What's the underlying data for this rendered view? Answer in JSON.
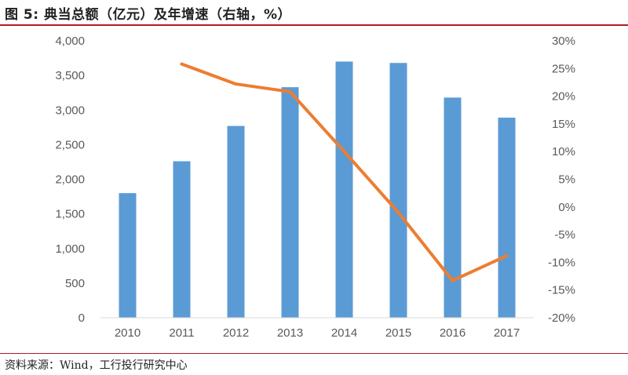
{
  "title": "图 5: 典当总额（亿元）及年增速（右轴，%）",
  "source": "资料来源：Wind，工行投行研究中心",
  "colors": {
    "bar": "#5b9bd5",
    "line": "#ed7d31",
    "axis_text": "#595959",
    "rule": "#b01c24"
  },
  "chart_data": {
    "type": "bar",
    "categories": [
      "2010",
      "2011",
      "2012",
      "2013",
      "2014",
      "2015",
      "2016",
      "2017"
    ],
    "series": [
      {
        "type": "bar",
        "axis": "left",
        "values": [
          1800,
          2260,
          2770,
          3330,
          3700,
          3680,
          3180,
          2890
        ]
      },
      {
        "type": "line",
        "axis": "right",
        "values": [
          null,
          25.8,
          22.2,
          20.8,
          10.0,
          -1.0,
          -13.3,
          -8.8
        ]
      }
    ],
    "y_left": {
      "min": 0,
      "max": 4000,
      "ticks": [
        0,
        500,
        1000,
        1500,
        2000,
        2500,
        3000,
        3500,
        4000
      ],
      "tick_labels": [
        "0",
        "500",
        "1,000",
        "1,500",
        "2,000",
        "2,500",
        "3,000",
        "3,500",
        "4,000"
      ]
    },
    "y_right": {
      "min": -20,
      "max": 30,
      "ticks": [
        -20,
        -15,
        -10,
        -5,
        0,
        5,
        10,
        15,
        20,
        25,
        30
      ],
      "tick_labels": [
        "-20%",
        "-15%",
        "-10%",
        "-5%",
        "0%",
        "5%",
        "10%",
        "15%",
        "20%",
        "25%",
        "30%"
      ]
    },
    "grid": false,
    "legend": "none"
  }
}
